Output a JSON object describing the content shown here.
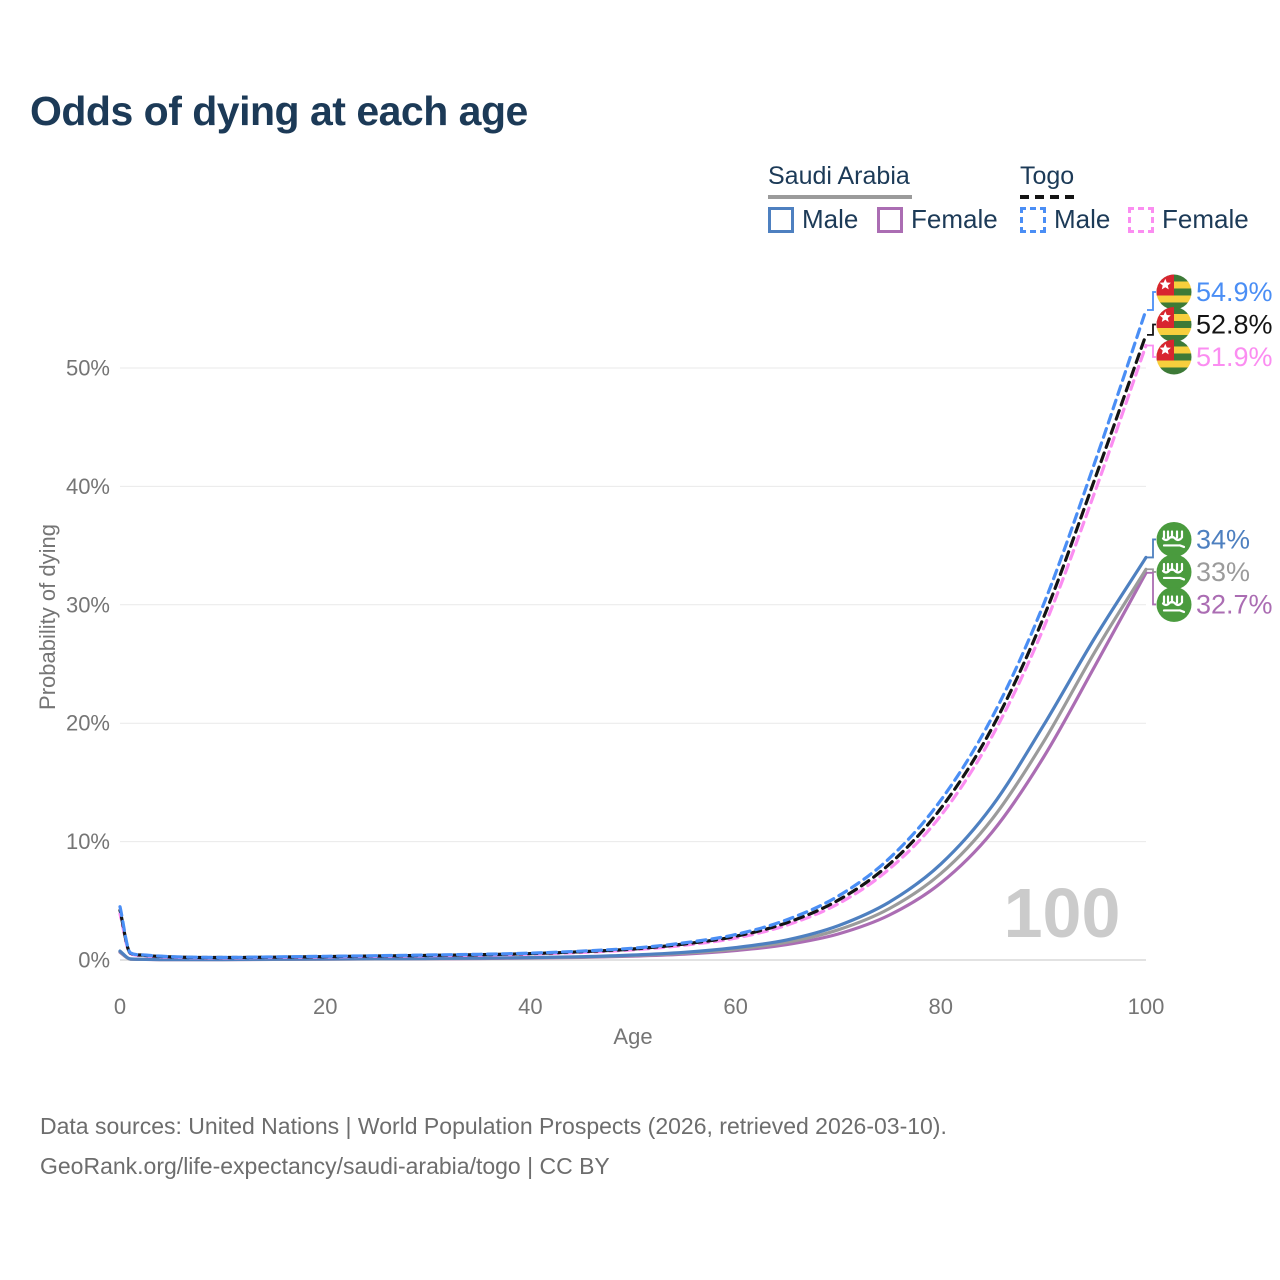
{
  "title": "Odds of dying at each age",
  "colors": {
    "title_text": "#1c3a57",
    "axis_text": "#757575",
    "grid": "#e9e9e9",
    "axis_line": "#d8d8d8",
    "watermark": "#cbcbcb",
    "footer_text": "#6d6d6d"
  },
  "legend": {
    "groups": [
      {
        "label": "Saudi Arabia",
        "line_style": "solid",
        "underline_color": "#9b9b9b"
      },
      {
        "label": "Togo",
        "line_style": "dashed",
        "underline_color": "#141414"
      }
    ],
    "items": [
      {
        "label": "Male",
        "color": "#4e80c0",
        "dashed": false
      },
      {
        "label": "Female",
        "color": "#ab6db3",
        "dashed": false
      },
      {
        "label": "Male",
        "color": "#4a8ef5",
        "dashed": true
      },
      {
        "label": "Female",
        "color": "#fb8df1",
        "dashed": true
      }
    ]
  },
  "chart_data": {
    "type": "line",
    "title": "Odds of dying at each age",
    "xlabel": "Age",
    "ylabel": "Probability of dying",
    "xlim": [
      0,
      100
    ],
    "ylim": [
      0,
      55
    ],
    "grid": "horizontal",
    "legend_position": "top-right",
    "watermark": "100",
    "x_ticks": [
      0,
      20,
      40,
      60,
      80,
      100
    ],
    "y_tick_values": [
      0,
      10,
      20,
      30,
      40,
      50
    ],
    "y_tick_labels": [
      "0%",
      "10%",
      "20%",
      "30%",
      "40%",
      "50%"
    ],
    "ages": [
      0,
      1,
      2,
      3,
      5,
      10,
      15,
      20,
      25,
      30,
      35,
      40,
      45,
      50,
      55,
      60,
      65,
      70,
      75,
      80,
      85,
      90,
      95,
      100
    ],
    "series": [
      {
        "name": "Saudi Arabia Female",
        "country": "Saudi Arabia",
        "sex": "Female",
        "color": "#ab6db3",
        "dashed": false,
        "flag": "saudi",
        "end_label": "32.7%",
        "label_color": "#ab6db3",
        "values": [
          0.65,
          0.08,
          0.05,
          0.04,
          0.03,
          0.03,
          0.05,
          0.07,
          0.09,
          0.11,
          0.13,
          0.17,
          0.22,
          0.33,
          0.5,
          0.8,
          1.3,
          2.2,
          3.8,
          6.5,
          10.8,
          17.1,
          24.8,
          32.7
        ]
      },
      {
        "name": "Saudi Arabia Both sexes",
        "country": "Saudi Arabia",
        "sex": "Both",
        "color": "#9b9b9b",
        "dashed": false,
        "flag": "saudi",
        "end_label": "33%",
        "label_color": "#9b9b9b",
        "values": [
          0.7,
          0.08,
          0.06,
          0.05,
          0.04,
          0.04,
          0.06,
          0.08,
          0.1,
          0.12,
          0.15,
          0.19,
          0.25,
          0.38,
          0.58,
          0.92,
          1.5,
          2.55,
          4.35,
          7.3,
          11.9,
          18.4,
          26.0,
          33.0
        ]
      },
      {
        "name": "Saudi Arabia Male",
        "country": "Saudi Arabia",
        "sex": "Male",
        "color": "#4e80c0",
        "dashed": false,
        "flag": "saudi",
        "end_label": "34%",
        "label_color": "#4e80c0",
        "values": [
          0.75,
          0.09,
          0.06,
          0.05,
          0.04,
          0.04,
          0.07,
          0.09,
          0.11,
          0.13,
          0.16,
          0.2,
          0.28,
          0.42,
          0.65,
          1.05,
          1.7,
          2.9,
          4.9,
          8.1,
          13.0,
          19.8,
          27.2,
          34.0
        ]
      },
      {
        "name": "Togo Female",
        "country": "Togo",
        "sex": "Female",
        "color": "#fb8df1",
        "dashed": true,
        "flag": "togo",
        "end_label": "51.9%",
        "label_color": "#fb8df1",
        "values": [
          3.9,
          0.54,
          0.39,
          0.32,
          0.24,
          0.19,
          0.22,
          0.26,
          0.31,
          0.36,
          0.41,
          0.5,
          0.64,
          0.86,
          1.25,
          1.85,
          2.95,
          4.75,
          7.7,
          12.2,
          18.9,
          28.0,
          39.5,
          51.9
        ]
      },
      {
        "name": "Togo Both sexes",
        "country": "Togo",
        "sex": "Both",
        "color": "#141414",
        "dashed": true,
        "flag": "togo",
        "end_label": "52.8%",
        "label_color": "#141414",
        "values": [
          4.2,
          0.58,
          0.42,
          0.35,
          0.26,
          0.21,
          0.24,
          0.29,
          0.34,
          0.39,
          0.45,
          0.54,
          0.7,
          0.93,
          1.35,
          2.0,
          3.15,
          5.05,
          8.1,
          12.8,
          19.6,
          28.9,
          40.6,
          52.8
        ]
      },
      {
        "name": "Togo Male",
        "country": "Togo",
        "sex": "Male",
        "color": "#4a8ef5",
        "dashed": true,
        "flag": "togo",
        "end_label": "54.9%",
        "label_color": "#4a8ef5",
        "values": [
          4.5,
          0.62,
          0.45,
          0.38,
          0.28,
          0.22,
          0.26,
          0.31,
          0.36,
          0.42,
          0.48,
          0.58,
          0.75,
          1.0,
          1.45,
          2.15,
          3.4,
          5.4,
          8.6,
          13.5,
          20.5,
          30.0,
          42.0,
          54.9
        ]
      }
    ],
    "flag_colors": {
      "togo_green": "#3d7a37",
      "togo_yellow": "#f7cf3d",
      "togo_red": "#d8252f",
      "togo_star": "#ffffff",
      "saudi_green": "#4a9b3e",
      "saudi_detail": "#ffffff"
    }
  },
  "footer": {
    "line1": "Data sources: United Nations | World Population Prospects (2026, retrieved 2026-03-10).",
    "line2": "GeoRank.org/life-expectancy/saudi-arabia/togo | CC BY"
  }
}
